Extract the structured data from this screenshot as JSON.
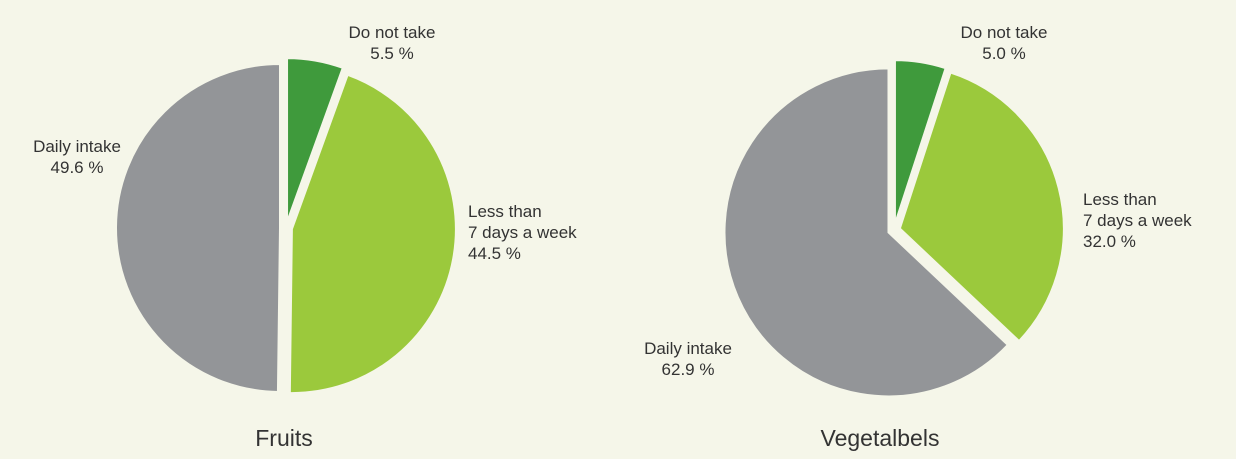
{
  "chart_data": [
    {
      "type": "pie",
      "title": "Fruits",
      "categories": [
        "Do not take",
        "Less than\n7 days a week",
        "Daily intake"
      ],
      "values": [
        5.5,
        44.5,
        49.6
      ],
      "value_labels": [
        "5.5 %",
        "44.5 %",
        "49.6 %"
      ],
      "colors": [
        "#3f9a3c",
        "#9bc93c",
        "#939598"
      ]
    },
    {
      "type": "pie",
      "title": "Vegetalbels",
      "categories": [
        "Do not take",
        "Less than\n7 days a week",
        "Daily intake"
      ],
      "values": [
        5.0,
        32.0,
        62.9
      ],
      "value_labels": [
        "5.0 %",
        "32.0 %",
        "62.9 %"
      ],
      "colors": [
        "#3f9a3c",
        "#9bc93c",
        "#939598"
      ]
    }
  ]
}
